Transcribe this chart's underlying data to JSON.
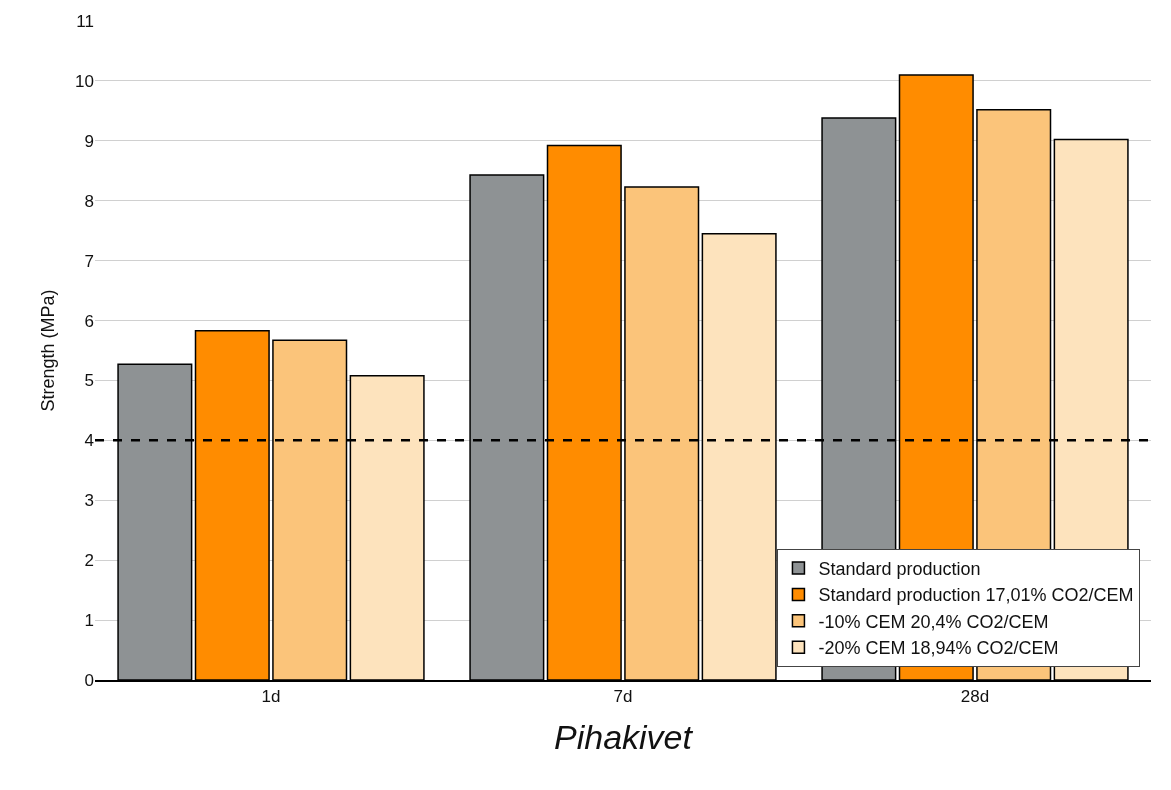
{
  "chart_data": {
    "type": "bar",
    "xlabel": "Pihakivet",
    "ylabel": "Strength (MPa)",
    "categories": [
      "1d",
      "7d",
      "28d"
    ],
    "series": [
      {
        "name": "Standard production",
        "color": "#8e9294",
        "values": [
          5.27,
          8.43,
          9.38
        ]
      },
      {
        "name": "Standard production 17,01% CO2/CEM",
        "color": "#ff8c00",
        "values": [
          5.83,
          8.92,
          10.1
        ]
      },
      {
        "name": "-10% CEM 20,4% CO2/CEM",
        "color": "#fbc47a",
        "values": [
          5.67,
          8.23,
          9.52
        ]
      },
      {
        "name": "-20% CEM 18,94% CO2/CEM",
        "color": "#fde3bd",
        "values": [
          5.08,
          7.45,
          9.02
        ]
      }
    ],
    "ylim": [
      0,
      11
    ],
    "yticks": [
      0,
      1,
      2,
      3,
      4,
      5,
      6,
      7,
      8,
      9,
      10,
      11
    ],
    "ref_lines": [
      {
        "axis": "y",
        "value": 4,
        "color": "#000000",
        "line_style": "dashed"
      }
    ],
    "grid": "y",
    "legend": "bottom right"
  }
}
